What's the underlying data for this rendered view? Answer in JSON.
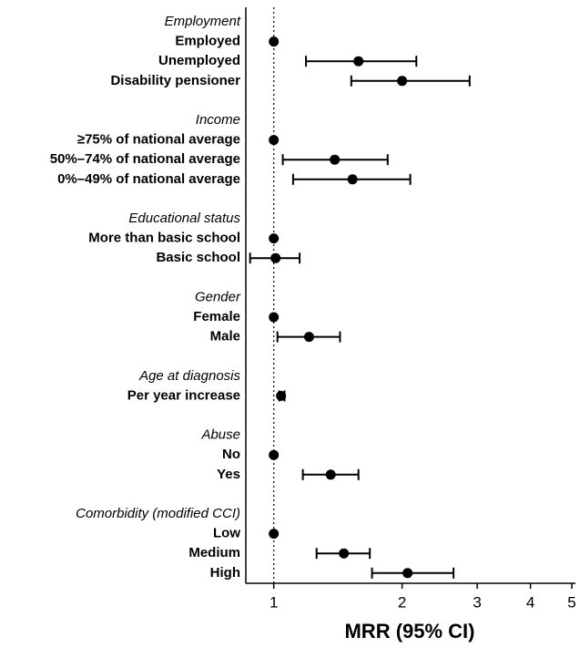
{
  "chart_data": {
    "type": "forest",
    "x_label": "MRR (95% CI)",
    "xscale": "log",
    "xlim": [
      0.86,
      5.1
    ],
    "xticks": [
      1,
      2,
      3,
      4,
      5
    ],
    "reference": 1,
    "color": "#000000",
    "groups": [
      {
        "title": "Employment",
        "rows": [
          {
            "label": "Employed",
            "value": 1
          },
          {
            "label": "Unemployed",
            "value": 1.58,
            "ci": [
              1.19,
              2.16
            ]
          },
          {
            "label": "Disability pensioner",
            "value": 2.0,
            "ci": [
              1.52,
              2.88
            ]
          }
        ]
      },
      {
        "title": "Income",
        "rows": [
          {
            "label": "≥75% of national average",
            "value": 1
          },
          {
            "label": "50%–74% of national average",
            "value": 1.39,
            "ci": [
              1.05,
              1.85
            ]
          },
          {
            "label": "0%–49% of national average",
            "value": 1.53,
            "ci": [
              1.11,
              2.09
            ]
          }
        ]
      },
      {
        "title": "Educational status",
        "rows": [
          {
            "label": "More than basic school",
            "value": 1
          },
          {
            "label": "Basic school",
            "value": 1.01,
            "ci": [
              0.88,
              1.15
            ]
          }
        ]
      },
      {
        "title": "Gender",
        "rows": [
          {
            "label": "Female",
            "value": 1
          },
          {
            "label": "Male",
            "value": 1.21,
            "ci": [
              1.02,
              1.43
            ]
          }
        ]
      },
      {
        "title": "Age at diagnosis",
        "rows": [
          {
            "label": "Per year increase",
            "value": 1.04,
            "ci": [
              1.03,
              1.06
            ]
          }
        ]
      },
      {
        "title": "Abuse",
        "rows": [
          {
            "label": "No",
            "value": 1
          },
          {
            "label": "Yes",
            "value": 1.36,
            "ci": [
              1.17,
              1.58
            ]
          }
        ]
      },
      {
        "title": "Comorbidity (modified CCI)",
        "rows": [
          {
            "label": "Low",
            "value": 1
          },
          {
            "label": "Medium",
            "value": 1.46,
            "ci": [
              1.26,
              1.68
            ]
          },
          {
            "label": "High",
            "value": 2.06,
            "ci": [
              1.7,
              2.64
            ]
          }
        ]
      }
    ]
  }
}
